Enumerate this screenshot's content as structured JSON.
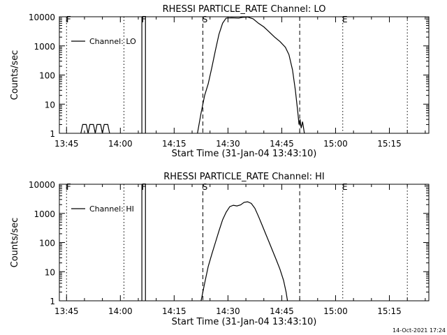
{
  "footer": {
    "timestamp": "14-Oct-2021 17:24"
  },
  "chart_data": [
    {
      "type": "line",
      "title": "RHESSI PARTICLE_RATE Channel: LO",
      "xlabel": "Start Time (31-Jan-04 13:43:10)",
      "ylabel": "Counts/sec",
      "yscale": "log",
      "ylim": [
        1,
        10000
      ],
      "xlim": [
        "13:43",
        "15:26"
      ],
      "x_ticks": [
        "13:45",
        "14:00",
        "14:15",
        "14:30",
        "14:45",
        "15:00",
        "15:15"
      ],
      "y_ticks": [
        "1",
        "10",
        "100",
        "1000",
        "10000"
      ],
      "legend": {
        "position": "top-left",
        "entries": [
          "Channel: LO"
        ]
      },
      "markers": [
        {
          "label": "F",
          "time": "13:45",
          "style": "dotted"
        },
        {
          "label": "",
          "time": "14:01",
          "style": "dotted"
        },
        {
          "label": "F",
          "time": "14:06",
          "style": "solid"
        },
        {
          "label": "",
          "time": "14:07",
          "style": "solid"
        },
        {
          "label": "S",
          "time": "14:23",
          "style": "dashed"
        },
        {
          "label": "",
          "time": "14:50",
          "style": "dashed"
        },
        {
          "label": "E",
          "time": "15:02",
          "style": "dotted"
        },
        {
          "label": "",
          "time": "15:20",
          "style": "dotted"
        }
      ],
      "series": [
        {
          "name": "Channel: LO",
          "segments": [
            [
              [
                "13:49",
                1
              ],
              [
                "13:49.5",
                2
              ],
              [
                "13:50.5",
                2
              ],
              [
                "13:51",
                1
              ],
              [
                "13:51.5",
                2
              ],
              [
                "13:52.5",
                2
              ],
              [
                "13:53",
                1
              ],
              [
                "13:53.5",
                2
              ],
              [
                "13:54.5",
                2
              ],
              [
                "13:55",
                1
              ],
              [
                "13:55.5",
                2
              ],
              [
                "13:56.5",
                2
              ],
              [
                "13:57",
                1
              ]
            ],
            [
              [
                "14:21.5",
                1
              ],
              [
                "14:22.5",
                5
              ],
              [
                "14:23.5",
                20
              ],
              [
                "14:24.5",
                50
              ],
              [
                "14:25.5",
                180
              ],
              [
                "14:26.5",
                700
              ],
              [
                "14:27.5",
                2500
              ],
              [
                "14:28.5",
                6000
              ],
              [
                "14:29.5",
                9000
              ],
              [
                "14:31",
                9200
              ],
              [
                "14:33",
                9000
              ],
              [
                "14:34",
                9500
              ],
              [
                "14:35.5",
                9800
              ],
              [
                "14:37",
                8500
              ],
              [
                "14:38.5",
                6000
              ],
              [
                "14:40",
                4500
              ],
              [
                "14:41.5",
                3000
              ],
              [
                "14:43",
                2000
              ],
              [
                "14:44.5",
                1400
              ],
              [
                "14:46",
                900
              ],
              [
                "14:47",
                500
              ],
              [
                "14:48",
                150
              ],
              [
                "14:48.8",
                30
              ],
              [
                "14:49.5",
                5
              ],
              [
                "14:49.8",
                2
              ],
              [
                "14:50.1",
                3
              ],
              [
                "14:50.4",
                1.5
              ],
              [
                "14:50.8",
                2.5
              ],
              [
                "14:51.3",
                1
              ]
            ]
          ]
        }
      ]
    },
    {
      "type": "line",
      "title": "RHESSI PARTICLE_RATE Channel: HI",
      "xlabel": "Start Time (31-Jan-04 13:43:10)",
      "ylabel": "Counts/sec",
      "yscale": "log",
      "ylim": [
        1,
        10000
      ],
      "xlim": [
        "13:43",
        "15:26"
      ],
      "x_ticks": [
        "13:45",
        "14:00",
        "14:15",
        "14:30",
        "14:45",
        "15:00",
        "15:15"
      ],
      "y_ticks": [
        "1",
        "10",
        "100",
        "1000",
        "10000"
      ],
      "legend": {
        "position": "top-left",
        "entries": [
          "Channel: HI"
        ]
      },
      "markers": [
        {
          "label": "F",
          "time": "13:45",
          "style": "dotted"
        },
        {
          "label": "",
          "time": "14:01",
          "style": "dotted"
        },
        {
          "label": "F",
          "time": "14:06",
          "style": "solid"
        },
        {
          "label": "",
          "time": "14:07",
          "style": "solid"
        },
        {
          "label": "S",
          "time": "14:23",
          "style": "dashed"
        },
        {
          "label": "",
          "time": "14:50",
          "style": "dashed"
        },
        {
          "label": "E",
          "time": "15:02",
          "style": "dotted"
        },
        {
          "label": "",
          "time": "15:20",
          "style": "dotted"
        }
      ],
      "series": [
        {
          "name": "Channel: HI",
          "segments": [
            [
              [
                "14:22.5",
                1
              ],
              [
                "14:23.5",
                4
              ],
              [
                "14:24.5",
                15
              ],
              [
                "14:25.5",
                40
              ],
              [
                "14:26.5",
                100
              ],
              [
                "14:27.5",
                250
              ],
              [
                "14:28.5",
                600
              ],
              [
                "14:29.5",
                1100
              ],
              [
                "14:30.5",
                1700
              ],
              [
                "14:31.5",
                1900
              ],
              [
                "14:32.5",
                1800
              ],
              [
                "14:33.5",
                1950
              ],
              [
                "14:34.5",
                2400
              ],
              [
                "14:35.5",
                2500
              ],
              [
                "14:36.5",
                2200
              ],
              [
                "14:37.5",
                1500
              ],
              [
                "14:38.5",
                800
              ],
              [
                "14:39.5",
                400
              ],
              [
                "14:40.5",
                200
              ],
              [
                "14:41.5",
                100
              ],
              [
                "14:42.5",
                50
              ],
              [
                "14:43.5",
                25
              ],
              [
                "14:44.5",
                12
              ],
              [
                "14:45.5",
                5
              ],
              [
                "14:46.2",
                2
              ],
              [
                "14:46.6",
                1
              ]
            ]
          ]
        }
      ]
    }
  ]
}
